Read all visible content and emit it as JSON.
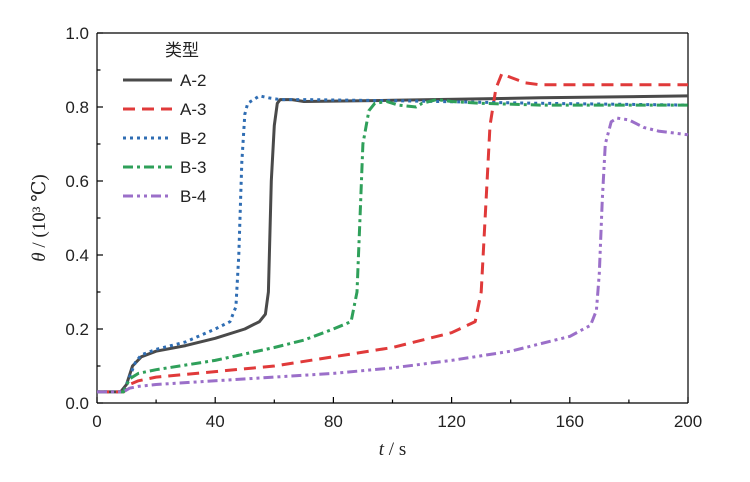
{
  "chart_data": {
    "type": "line",
    "xlabel_var": "t",
    "xlabel_unit": "s",
    "ylabel_var": "θ",
    "ylabel_unit": "(10³ ℃)",
    "xlim": [
      0,
      200
    ],
    "ylim": [
      0,
      1.0
    ],
    "xticks": [
      "0",
      "40",
      "80",
      "120",
      "160",
      "200"
    ],
    "yticks": [
      "0.0",
      "0.2",
      "0.4",
      "0.6",
      "0.8",
      "1.0"
    ],
    "grid": false,
    "legend": {
      "title": "类型",
      "placement": "top-left"
    },
    "series": [
      {
        "name": "A-2",
        "color": "#4a4a4a",
        "dash": "solid",
        "points": [
          [
            0,
            0.03
          ],
          [
            8,
            0.03
          ],
          [
            10,
            0.05
          ],
          [
            12,
            0.1
          ],
          [
            15,
            0.125
          ],
          [
            20,
            0.14
          ],
          [
            30,
            0.155
          ],
          [
            40,
            0.175
          ],
          [
            50,
            0.2
          ],
          [
            55,
            0.22
          ],
          [
            57,
            0.24
          ],
          [
            58,
            0.3
          ],
          [
            59,
            0.6
          ],
          [
            60,
            0.75
          ],
          [
            61,
            0.81
          ],
          [
            62,
            0.82
          ],
          [
            66,
            0.82
          ],
          [
            70,
            0.815
          ],
          [
            100,
            0.818
          ],
          [
            150,
            0.825
          ],
          [
            200,
            0.83
          ]
        ]
      },
      {
        "name": "A-3",
        "color": "#e03a3a",
        "dash": "12,7",
        "points": [
          [
            0,
            0.03
          ],
          [
            9,
            0.03
          ],
          [
            11,
            0.05
          ],
          [
            14,
            0.06
          ],
          [
            20,
            0.07
          ],
          [
            40,
            0.085
          ],
          [
            60,
            0.1
          ],
          [
            80,
            0.125
          ],
          [
            100,
            0.15
          ],
          [
            120,
            0.19
          ],
          [
            128,
            0.22
          ],
          [
            130,
            0.3
          ],
          [
            132,
            0.6
          ],
          [
            133,
            0.75
          ],
          [
            135,
            0.85
          ],
          [
            137,
            0.89
          ],
          [
            140,
            0.88
          ],
          [
            145,
            0.865
          ],
          [
            150,
            0.86
          ],
          [
            160,
            0.86
          ],
          [
            200,
            0.86
          ]
        ]
      },
      {
        "name": "B-2",
        "color": "#2f6db3",
        "dash": "3,4",
        "points": [
          [
            0,
            0.03
          ],
          [
            9,
            0.03
          ],
          [
            11,
            0.07
          ],
          [
            13,
            0.11
          ],
          [
            15,
            0.13
          ],
          [
            20,
            0.145
          ],
          [
            30,
            0.165
          ],
          [
            40,
            0.2
          ],
          [
            45,
            0.22
          ],
          [
            47,
            0.26
          ],
          [
            48,
            0.4
          ],
          [
            49,
            0.65
          ],
          [
            50,
            0.78
          ],
          [
            51,
            0.81
          ],
          [
            53,
            0.82
          ],
          [
            55,
            0.83
          ],
          [
            58,
            0.825
          ],
          [
            62,
            0.82
          ],
          [
            70,
            0.82
          ],
          [
            100,
            0.817
          ],
          [
            150,
            0.81
          ],
          [
            200,
            0.805
          ]
        ]
      },
      {
        "name": "B-3",
        "color": "#2fa05a",
        "dash": "10,4,3,4",
        "points": [
          [
            0,
            0.03
          ],
          [
            9,
            0.03
          ],
          [
            11,
            0.065
          ],
          [
            14,
            0.08
          ],
          [
            20,
            0.09
          ],
          [
            40,
            0.115
          ],
          [
            60,
            0.15
          ],
          [
            70,
            0.17
          ],
          [
            80,
            0.2
          ],
          [
            86,
            0.22
          ],
          [
            88,
            0.3
          ],
          [
            89,
            0.5
          ],
          [
            90,
            0.7
          ],
          [
            92,
            0.79
          ],
          [
            94,
            0.81
          ],
          [
            98,
            0.815
          ],
          [
            102,
            0.805
          ],
          [
            108,
            0.8
          ],
          [
            110,
            0.81
          ],
          [
            115,
            0.82
          ],
          [
            120,
            0.815
          ],
          [
            130,
            0.81
          ],
          [
            150,
            0.805
          ],
          [
            200,
            0.805
          ]
        ]
      },
      {
        "name": "B-4",
        "color": "#9b6fc9",
        "dash": "10,4,3,4,3,4",
        "points": [
          [
            0,
            0.03
          ],
          [
            9,
            0.03
          ],
          [
            11,
            0.04
          ],
          [
            14,
            0.045
          ],
          [
            20,
            0.05
          ],
          [
            40,
            0.06
          ],
          [
            60,
            0.07
          ],
          [
            80,
            0.08
          ],
          [
            100,
            0.095
          ],
          [
            120,
            0.115
          ],
          [
            140,
            0.14
          ],
          [
            160,
            0.18
          ],
          [
            167,
            0.21
          ],
          [
            169,
            0.25
          ],
          [
            170,
            0.35
          ],
          [
            171,
            0.55
          ],
          [
            172,
            0.7
          ],
          [
            174,
            0.76
          ],
          [
            176,
            0.77
          ],
          [
            180,
            0.765
          ],
          [
            185,
            0.745
          ],
          [
            190,
            0.735
          ],
          [
            195,
            0.73
          ],
          [
            200,
            0.725
          ]
        ]
      }
    ]
  }
}
